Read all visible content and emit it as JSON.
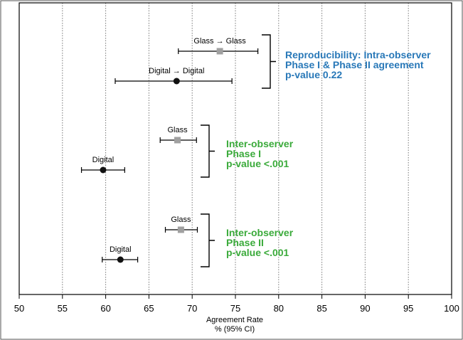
{
  "chart_data": {
    "type": "scatter",
    "xlabel_line1": "Agreement Rate",
    "xlabel_line2": "% (95% CI)",
    "xlim": [
      50,
      100
    ],
    "xticks": [
      "50",
      "55",
      "60",
      "65",
      "70",
      "75",
      "80",
      "85",
      "90",
      "95",
      "100"
    ],
    "grid": "vertical dotted lines at each tick",
    "colors": {
      "blue": "#2878b8",
      "green": "#3aaa3a",
      "glass": "#a0a0a0",
      "digital": "#111111"
    },
    "points": [
      {
        "label": "Glass → Glass",
        "marker": "square",
        "estimate": 73.2,
        "ci_low": 68.4,
        "ci_high": 77.6,
        "group": 1
      },
      {
        "label": "Digital → Digital",
        "marker": "circle",
        "estimate": 68.2,
        "ci_low": 61.1,
        "ci_high": 74.6,
        "group": 1
      },
      {
        "label": "Glass",
        "marker": "square",
        "estimate": 68.3,
        "ci_low": 66.3,
        "ci_high": 70.5,
        "group": 2
      },
      {
        "label": "Digital",
        "marker": "circle",
        "estimate": 59.7,
        "ci_low": 57.2,
        "ci_high": 62.2,
        "group": 2
      },
      {
        "label": "Glass",
        "marker": "square",
        "estimate": 68.7,
        "ci_low": 66.9,
        "ci_high": 70.6,
        "group": 3
      },
      {
        "label": "Digital",
        "marker": "circle",
        "estimate": 61.7,
        "ci_low": 59.6,
        "ci_high": 63.7,
        "group": 3
      }
    ],
    "annotations": [
      {
        "group": 1,
        "color": "blue",
        "lines": [
          "Reproducibility: Intra-observer",
          "Phase I & Phase II agreement",
          "p-value 0.22"
        ]
      },
      {
        "group": 2,
        "color": "green",
        "lines": [
          "Inter-observer",
          "Phase I",
          "p-value <.001"
        ]
      },
      {
        "group": 3,
        "color": "green",
        "lines": [
          "Inter-observer",
          "Phase II",
          "p-value <.001"
        ]
      }
    ]
  }
}
